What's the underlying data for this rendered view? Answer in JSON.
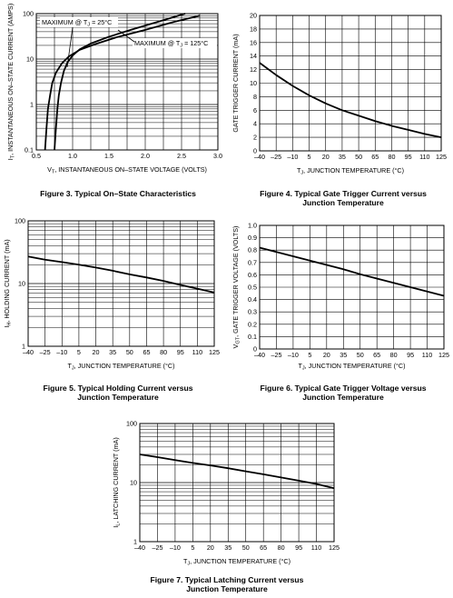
{
  "chart_data": [
    {
      "id": "fig3",
      "type": "line",
      "xscale": "linear",
      "yscale": "log",
      "xlim": [
        0.5,
        3.0
      ],
      "ylim": [
        0.1,
        100
      ],
      "xticks": [
        "0.5",
        "1.0",
        "1.5",
        "2.0",
        "2.5",
        "3.0"
      ],
      "yticks": [
        "0.1",
        "1",
        "10",
        "100"
      ],
      "xlabel_pre": "V",
      "xlabel_sub": "T",
      "xlabel_post": ", INSTANTANEOUS ON–STATE VOLTAGE (VOLTS)",
      "ylabel_pre": "I",
      "ylabel_sub": "T",
      "ylabel_post": ", INSTANTANEOUS ON–STATE CURRENT (AMPS)",
      "grid": true,
      "series": [
        {
          "name": "MAXIMUM @ TJ = 25°C",
          "x": [
            0.75,
            0.77,
            0.79,
            0.81,
            0.84,
            0.88,
            0.93,
            1.0,
            1.1,
            1.25,
            1.5,
            1.8,
            2.2,
            2.55
          ],
          "y": [
            0.1,
            0.3,
            0.8,
            1.6,
            3.0,
            5.5,
            8.5,
            12,
            16.5,
            22,
            31,
            44,
            68,
            100
          ]
        },
        {
          "name": "MAXIMUM @ TJ = 125°C",
          "x": [
            0.62,
            0.64,
            0.66,
            0.69,
            0.72,
            0.77,
            0.85,
            0.95,
            1.1,
            1.3,
            1.6,
            2.0,
            2.4,
            2.75
          ],
          "y": [
            0.1,
            0.3,
            0.8,
            1.6,
            3.0,
            5.0,
            8.0,
            11.5,
            16,
            21,
            30,
            44,
            66,
            90
          ]
        }
      ],
      "annotations": [
        {
          "pre": "MAXIMUM @ T",
          "sub": "J",
          "post": " = 25°C"
        },
        {
          "pre": "MAXIMUM @ T",
          "sub": "J",
          "post": " = 125°C"
        }
      ],
      "caption": "Figure 3. Typical On–State Characteristics"
    },
    {
      "id": "fig4",
      "type": "line",
      "xscale": "linear",
      "yscale": "linear",
      "xlim": [
        -40,
        125
      ],
      "ylim": [
        0,
        20
      ],
      "xticks": [
        "–40",
        "–25",
        "–10",
        "5",
        "20",
        "35",
        "50",
        "65",
        "80",
        "95",
        "110",
        "125"
      ],
      "yticks": [
        "0",
        "2",
        "4",
        "6",
        "8",
        "10",
        "12",
        "14",
        "16",
        "18",
        "20"
      ],
      "xlabel_pre": "T",
      "xlabel_sub": "J",
      "xlabel_post": ", JUNCTION TEMPERATURE (°C)",
      "ylabel_pre": "",
      "ylabel_sub": "",
      "ylabel_post": "GATE TRIGGER CURRENT (mA)",
      "grid": true,
      "series": [
        {
          "name": "",
          "x": [
            -40,
            -25,
            -10,
            5,
            20,
            35,
            50,
            65,
            80,
            95,
            110,
            125
          ],
          "y": [
            13,
            11.2,
            9.6,
            8.2,
            7.0,
            6.0,
            5.2,
            4.4,
            3.7,
            3.1,
            2.5,
            2.0
          ]
        }
      ],
      "caption_lines": [
        "Figure 4. Typical Gate Trigger Current versus",
        "Junction Temperature"
      ]
    },
    {
      "id": "fig5",
      "type": "line",
      "xscale": "linear",
      "yscale": "log",
      "xlim": [
        -40,
        125
      ],
      "ylim": [
        1,
        100
      ],
      "xticks": [
        "–40",
        "–25",
        "–10",
        "5",
        "20",
        "35",
        "50",
        "65",
        "80",
        "95",
        "110",
        "125"
      ],
      "yticks": [
        "1",
        "10",
        "100"
      ],
      "xlabel_pre": "T",
      "xlabel_sub": "J",
      "xlabel_post": ", JUNCTION TEMPERATURE (°C)",
      "ylabel_pre": "I",
      "ylabel_sub": "H",
      "ylabel_post": ", HOLDING CURRENT (mA)",
      "grid": true,
      "series": [
        {
          "name": "",
          "x": [
            -40,
            -25,
            -10,
            5,
            20,
            35,
            50,
            65,
            80,
            95,
            110,
            125
          ],
          "y": [
            27,
            24,
            22,
            20,
            18,
            16,
            14,
            12.5,
            11,
            9.5,
            8.3,
            7.2
          ]
        }
      ],
      "caption_lines": [
        "Figure 5. Typical Holding Current versus",
        "Junction Temperature"
      ]
    },
    {
      "id": "fig6",
      "type": "line",
      "xscale": "linear",
      "yscale": "linear",
      "xlim": [
        -40,
        125
      ],
      "ylim": [
        0,
        1.0
      ],
      "xticks": [
        "–40",
        "–25",
        "–10",
        "5",
        "20",
        "35",
        "50",
        "65",
        "80",
        "95",
        "110",
        "125"
      ],
      "yticks": [
        "0",
        "0.1",
        "0.2",
        "0.3",
        "0.4",
        "0.5",
        "0.6",
        "0.7",
        "0.8",
        "0.9",
        "1.0"
      ],
      "xlabel_pre": "T",
      "xlabel_sub": "J",
      "xlabel_post": ", JUNCTION TEMPERATURE (°C)",
      "ylabel_pre": "V",
      "ylabel_sub": "GT",
      "ylabel_post": ", GATE TRIGGER VOLTAGE (VOLTS)",
      "grid": true,
      "series": [
        {
          "name": "",
          "x": [
            -40,
            -25,
            -10,
            5,
            20,
            35,
            50,
            65,
            80,
            95,
            110,
            125
          ],
          "y": [
            0.82,
            0.785,
            0.75,
            0.715,
            0.68,
            0.645,
            0.605,
            0.57,
            0.535,
            0.5,
            0.465,
            0.43
          ]
        }
      ],
      "caption_lines": [
        "Figure 6. Typical Gate Trigger Voltage versus",
        "Junction Temperature"
      ]
    },
    {
      "id": "fig7",
      "type": "line",
      "xscale": "linear",
      "yscale": "log",
      "xlim": [
        -40,
        125
      ],
      "ylim": [
        1,
        100
      ],
      "xticks": [
        "–40",
        "–25",
        "–10",
        "5",
        "20",
        "35",
        "50",
        "65",
        "80",
        "95",
        "110",
        "125"
      ],
      "yticks": [
        "1",
        "10",
        "100"
      ],
      "xlabel_pre": "T",
      "xlabel_sub": "J",
      "xlabel_post": ", JUNCTION TEMPERATURE (°C)",
      "ylabel_pre": "I",
      "ylabel_sub": "L",
      "ylabel_post": ", LATCHING CURRENT (mA)",
      "grid": true,
      "series": [
        {
          "name": "",
          "x": [
            -40,
            -25,
            -10,
            5,
            20,
            35,
            50,
            65,
            80,
            95,
            110,
            125
          ],
          "y": [
            30,
            27,
            24,
            21.5,
            19.5,
            17.5,
            15.5,
            13.8,
            12.2,
            10.8,
            9.5,
            8.0
          ]
        }
      ],
      "caption_lines": [
        "Figure 7. Typical Latching Current versus",
        "Junction Temperature"
      ]
    }
  ]
}
